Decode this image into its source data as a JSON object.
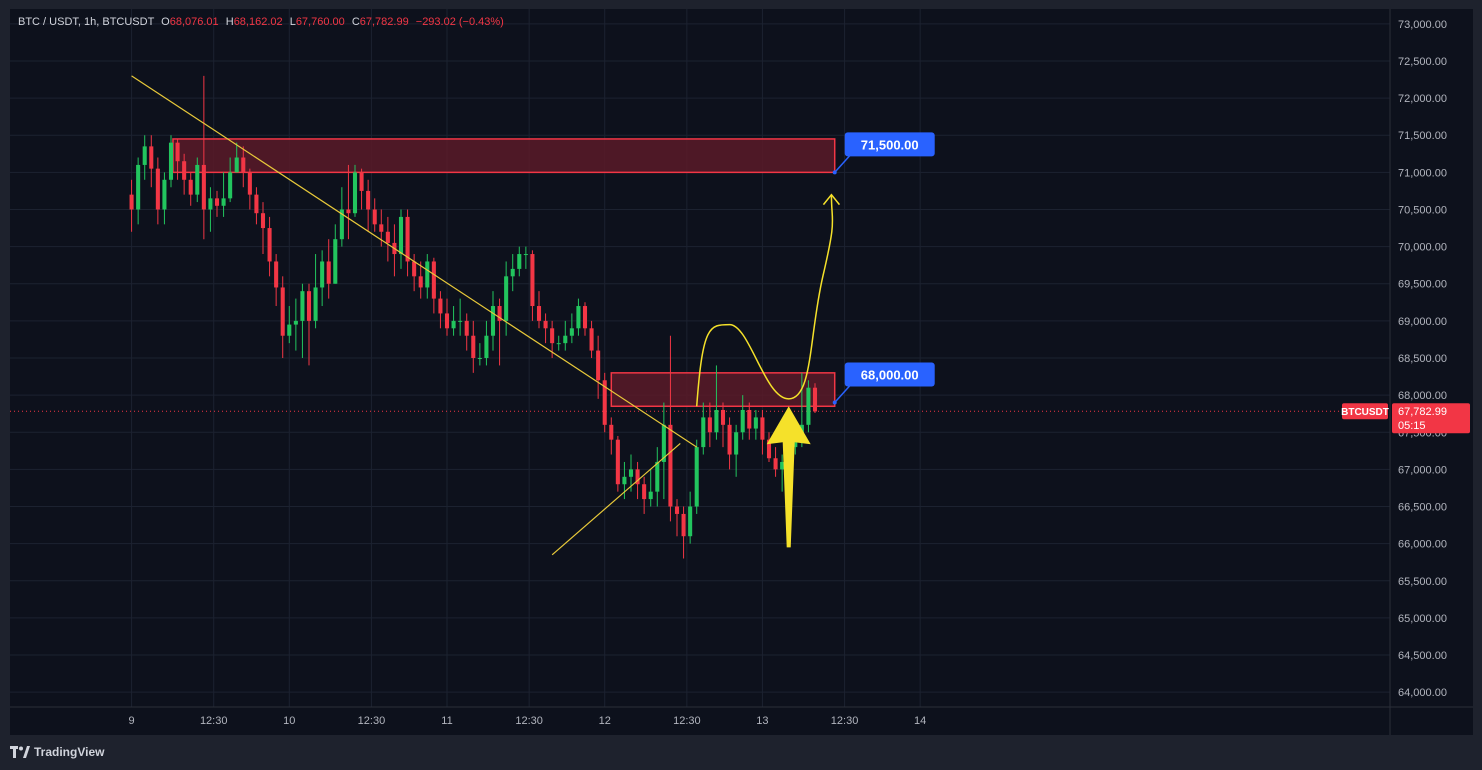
{
  "header": {
    "symbol": "BTC / USDT, 1h, BTCUSDT",
    "o_label": "O",
    "o_value": "68,076.01",
    "h_label": "H",
    "h_value": "68,162.02",
    "l_label": "L",
    "l_value": "67,760.00",
    "c_label": "C",
    "c_value": "67,782.99",
    "change": "−293.02 (−0.43%)"
  },
  "footer": {
    "brand": "TradingView"
  },
  "colors": {
    "background": "#0d111c",
    "up": "#22c55e",
    "down": "#f23645",
    "zone_fill": "#5a1a28",
    "zone_border": "#f23645",
    "trendline": "#e8c93a",
    "projection": "#f5e12a",
    "label_bg": "#2962ff",
    "price_tag_bg": "#f23645"
  },
  "chart_data": {
    "type": "candlestick",
    "symbol": "BTCUSDT",
    "interval": "1h",
    "y_range": [
      63800,
      73200
    ],
    "y_ticks": [
      {
        "value": 73000,
        "label": "73,000.00"
      },
      {
        "value": 72500,
        "label": "72,500.00"
      },
      {
        "value": 72000,
        "label": "72,000.00"
      },
      {
        "value": 71500,
        "label": "71,500.00"
      },
      {
        "value": 71000,
        "label": "71,000.00"
      },
      {
        "value": 70500,
        "label": "70,500.00"
      },
      {
        "value": 70000,
        "label": "70,000.00"
      },
      {
        "value": 69500,
        "label": "69,500.00"
      },
      {
        "value": 69000,
        "label": "69,000.00"
      },
      {
        "value": 68500,
        "label": "68,500.00"
      },
      {
        "value": 68000,
        "label": "68,000.00"
      },
      {
        "value": 67500,
        "label": "67,500.00"
      },
      {
        "value": 67000,
        "label": "67,000.00"
      },
      {
        "value": 66500,
        "label": "66,500.00"
      },
      {
        "value": 66000,
        "label": "66,000.00"
      },
      {
        "value": 65500,
        "label": "65,500.00"
      },
      {
        "value": 65000,
        "label": "65,000.00"
      },
      {
        "value": 64500,
        "label": "64,500.00"
      },
      {
        "value": 64000,
        "label": "64,000.00"
      }
    ],
    "x_range": [
      -18.5,
      191.5
    ],
    "x_ticks": [
      {
        "t": 0,
        "label": "9"
      },
      {
        "t": 12.5,
        "label": "12:30"
      },
      {
        "t": 24,
        "label": "10"
      },
      {
        "t": 36.5,
        "label": "12:30"
      },
      {
        "t": 48,
        "label": "11"
      },
      {
        "t": 60.5,
        "label": "12:30"
      },
      {
        "t": 72,
        "label": "12"
      },
      {
        "t": 84.5,
        "label": "12:30"
      },
      {
        "t": 96,
        "label": "13"
      },
      {
        "t": 108.5,
        "label": "12:30"
      },
      {
        "t": 120,
        "label": "14"
      }
    ],
    "candles": [
      [
        70700,
        70500,
        70200,
        70900
      ],
      [
        70500,
        71100,
        70300,
        71200
      ],
      [
        71100,
        71350,
        70900,
        71500
      ],
      [
        71350,
        71050,
        70800,
        71500
      ],
      [
        71050,
        70500,
        70300,
        71200
      ],
      [
        70500,
        70900,
        70300,
        71000
      ],
      [
        70900,
        71400,
        70800,
        71500
      ],
      [
        71400,
        71150,
        70900,
        71450
      ],
      [
        71150,
        70900,
        70700,
        71250
      ],
      [
        70900,
        70700,
        70550,
        71000
      ],
      [
        70700,
        71100,
        70600,
        71200
      ],
      [
        71100,
        70500,
        70100,
        72300
      ],
      [
        70500,
        70650,
        70200,
        70800
      ],
      [
        70650,
        70550,
        70400,
        70750
      ],
      [
        70550,
        70650,
        70400,
        71000
      ],
      [
        70650,
        71000,
        70600,
        71200
      ],
      [
        71000,
        71200,
        71000,
        71400
      ],
      [
        71200,
        71000,
        70800,
        71350
      ],
      [
        71000,
        70700,
        70500,
        71050
      ],
      [
        70700,
        70450,
        70300,
        70800
      ],
      [
        70450,
        70250,
        69900,
        70600
      ],
      [
        70250,
        69800,
        69600,
        70400
      ],
      [
        69800,
        69450,
        69200,
        69900
      ],
      [
        69450,
        68800,
        68500,
        69600
      ],
      [
        68800,
        68950,
        68700,
        69200
      ],
      [
        68950,
        69000,
        68600,
        69300
      ],
      [
        69000,
        69400,
        68500,
        69500
      ],
      [
        69400,
        69000,
        68400,
        69500
      ],
      [
        69000,
        69450,
        68900,
        69900
      ],
      [
        69450,
        69800,
        69200,
        69950
      ],
      [
        69800,
        69500,
        69300,
        70100
      ],
      [
        69500,
        70100,
        69500,
        70300
      ],
      [
        70100,
        70500,
        70000,
        70800
      ],
      [
        70500,
        70450,
        70100,
        71100
      ],
      [
        70450,
        71000,
        70400,
        71100
      ],
      [
        71000,
        70750,
        70500,
        71050
      ],
      [
        70750,
        70500,
        70200,
        70900
      ],
      [
        70500,
        70300,
        70200,
        70650
      ],
      [
        70300,
        70200,
        70000,
        70500
      ],
      [
        70200,
        70050,
        69800,
        70400
      ],
      [
        70050,
        69900,
        69600,
        70300
      ],
      [
        69900,
        70400,
        69700,
        70500
      ],
      [
        70400,
        69800,
        69600,
        70500
      ],
      [
        69800,
        69600,
        69400,
        69900
      ],
      [
        69600,
        69450,
        69300,
        69800
      ],
      [
        69450,
        69800,
        69300,
        69900
      ],
      [
        69800,
        69300,
        69100,
        69850
      ],
      [
        69300,
        69100,
        68900,
        69400
      ],
      [
        69100,
        68900,
        68800,
        69300
      ],
      [
        68900,
        69000,
        68800,
        69200
      ],
      [
        69000,
        69000,
        68800,
        69300
      ],
      [
        69000,
        68800,
        68600,
        69100
      ],
      [
        68800,
        68500,
        68300,
        69000
      ],
      [
        68500,
        68500,
        68400,
        68700
      ],
      [
        68500,
        68800,
        68400,
        69000
      ],
      [
        68800,
        69200,
        68600,
        69400
      ],
      [
        69200,
        69000,
        68400,
        69300
      ],
      [
        69000,
        69600,
        68800,
        69800
      ],
      [
        69600,
        69700,
        69400,
        69900
      ],
      [
        69700,
        69900,
        69600,
        70000
      ],
      [
        69900,
        69900,
        69700,
        70000
      ],
      [
        69900,
        69200,
        69000,
        69950
      ],
      [
        69200,
        69000,
        68900,
        69400
      ],
      [
        69000,
        68900,
        68700,
        69100
      ],
      [
        68900,
        68700,
        68500,
        69000
      ],
      [
        68700,
        68700,
        68600,
        68800
      ],
      [
        68700,
        68800,
        68600,
        69000
      ],
      [
        68800,
        68900,
        68700,
        69100
      ],
      [
        68900,
        69200,
        68800,
        69300
      ],
      [
        69200,
        68900,
        68800,
        69250
      ],
      [
        68900,
        68600,
        68500,
        69000
      ],
      [
        68600,
        68200,
        67950,
        68800
      ],
      [
        68200,
        67600,
        67500,
        68300
      ],
      [
        67600,
        67400,
        67200,
        67700
      ],
      [
        67400,
        66800,
        66700,
        67450
      ],
      [
        66800,
        66900,
        66600,
        67100
      ],
      [
        66900,
        67000,
        66700,
        67200
      ],
      [
        67000,
        66800,
        66600,
        67100
      ],
      [
        66800,
        66600,
        66400,
        66900
      ],
      [
        66600,
        66700,
        66500,
        67000
      ],
      [
        66700,
        67100,
        66500,
        67300
      ],
      [
        67100,
        67600,
        66600,
        67900
      ],
      [
        67600,
        66500,
        66300,
        68800
      ],
      [
        66500,
        66400,
        66100,
        66600
      ],
      [
        66400,
        66100,
        65800,
        66500
      ],
      [
        66100,
        66500,
        66000,
        66700
      ],
      [
        66500,
        67300,
        66400,
        67400
      ],
      [
        67300,
        67700,
        67200,
        67900
      ],
      [
        67700,
        67500,
        67300,
        67900
      ],
      [
        67500,
        67800,
        67400,
        68400
      ],
      [
        67800,
        67600,
        67300,
        67900
      ],
      [
        67600,
        67200,
        67000,
        67700
      ],
      [
        67200,
        67500,
        66900,
        67600
      ],
      [
        67500,
        67800,
        67400,
        68000
      ],
      [
        67800,
        67550,
        67400,
        67900
      ],
      [
        67550,
        67700,
        67400,
        67800
      ],
      [
        67700,
        67400,
        67200,
        67800
      ],
      [
        67400,
        67150,
        67100,
        67500
      ],
      [
        67150,
        67000,
        66900,
        67300
      ],
      [
        67000,
        67100,
        66700,
        67200
      ],
      [
        67100,
        67300,
        67000,
        67400
      ],
      [
        67300,
        67400,
        67200,
        67600
      ],
      [
        67400,
        67600,
        67300,
        68300
      ],
      [
        67600,
        68100,
        67500,
        68200
      ],
      [
        68100,
        67780,
        67760,
        68160
      ]
    ],
    "resistance_zones": [
      {
        "top": 71450,
        "bottom": 71000,
        "t_start": 6.3
      },
      {
        "top": 68300,
        "bottom": 67850,
        "t_start": 73
      }
    ],
    "trendlines": [
      {
        "t1": 0,
        "p1": 72300,
        "t2": 86,
        "p2": 67300
      },
      {
        "t1": 64,
        "p1": 65850,
        "t2": 83.5,
        "p2": 67350
      }
    ],
    "zone_end_t": 107,
    "projection_path": [
      [
        86,
        67850
      ],
      [
        91,
        68950
      ],
      [
        100,
        67950
      ],
      [
        104,
        68800
      ],
      [
        106.5,
        70700
      ]
    ],
    "projection_up_arrow": {
      "t": 100,
      "p_bottom": 65950,
      "p_tip": 67850
    },
    "price_labels": [
      {
        "label": "71,500.00",
        "price": 71500,
        "anchor_t": 107,
        "anchor_p": 71000
      },
      {
        "label": "68,000.00",
        "price": 68000,
        "anchor_t": 107,
        "anchor_p": 67900
      }
    ],
    "current_price": {
      "symbol": "BTCUSDT",
      "value": "67,782.99",
      "countdown": "05:15",
      "price": 67782.99
    }
  }
}
